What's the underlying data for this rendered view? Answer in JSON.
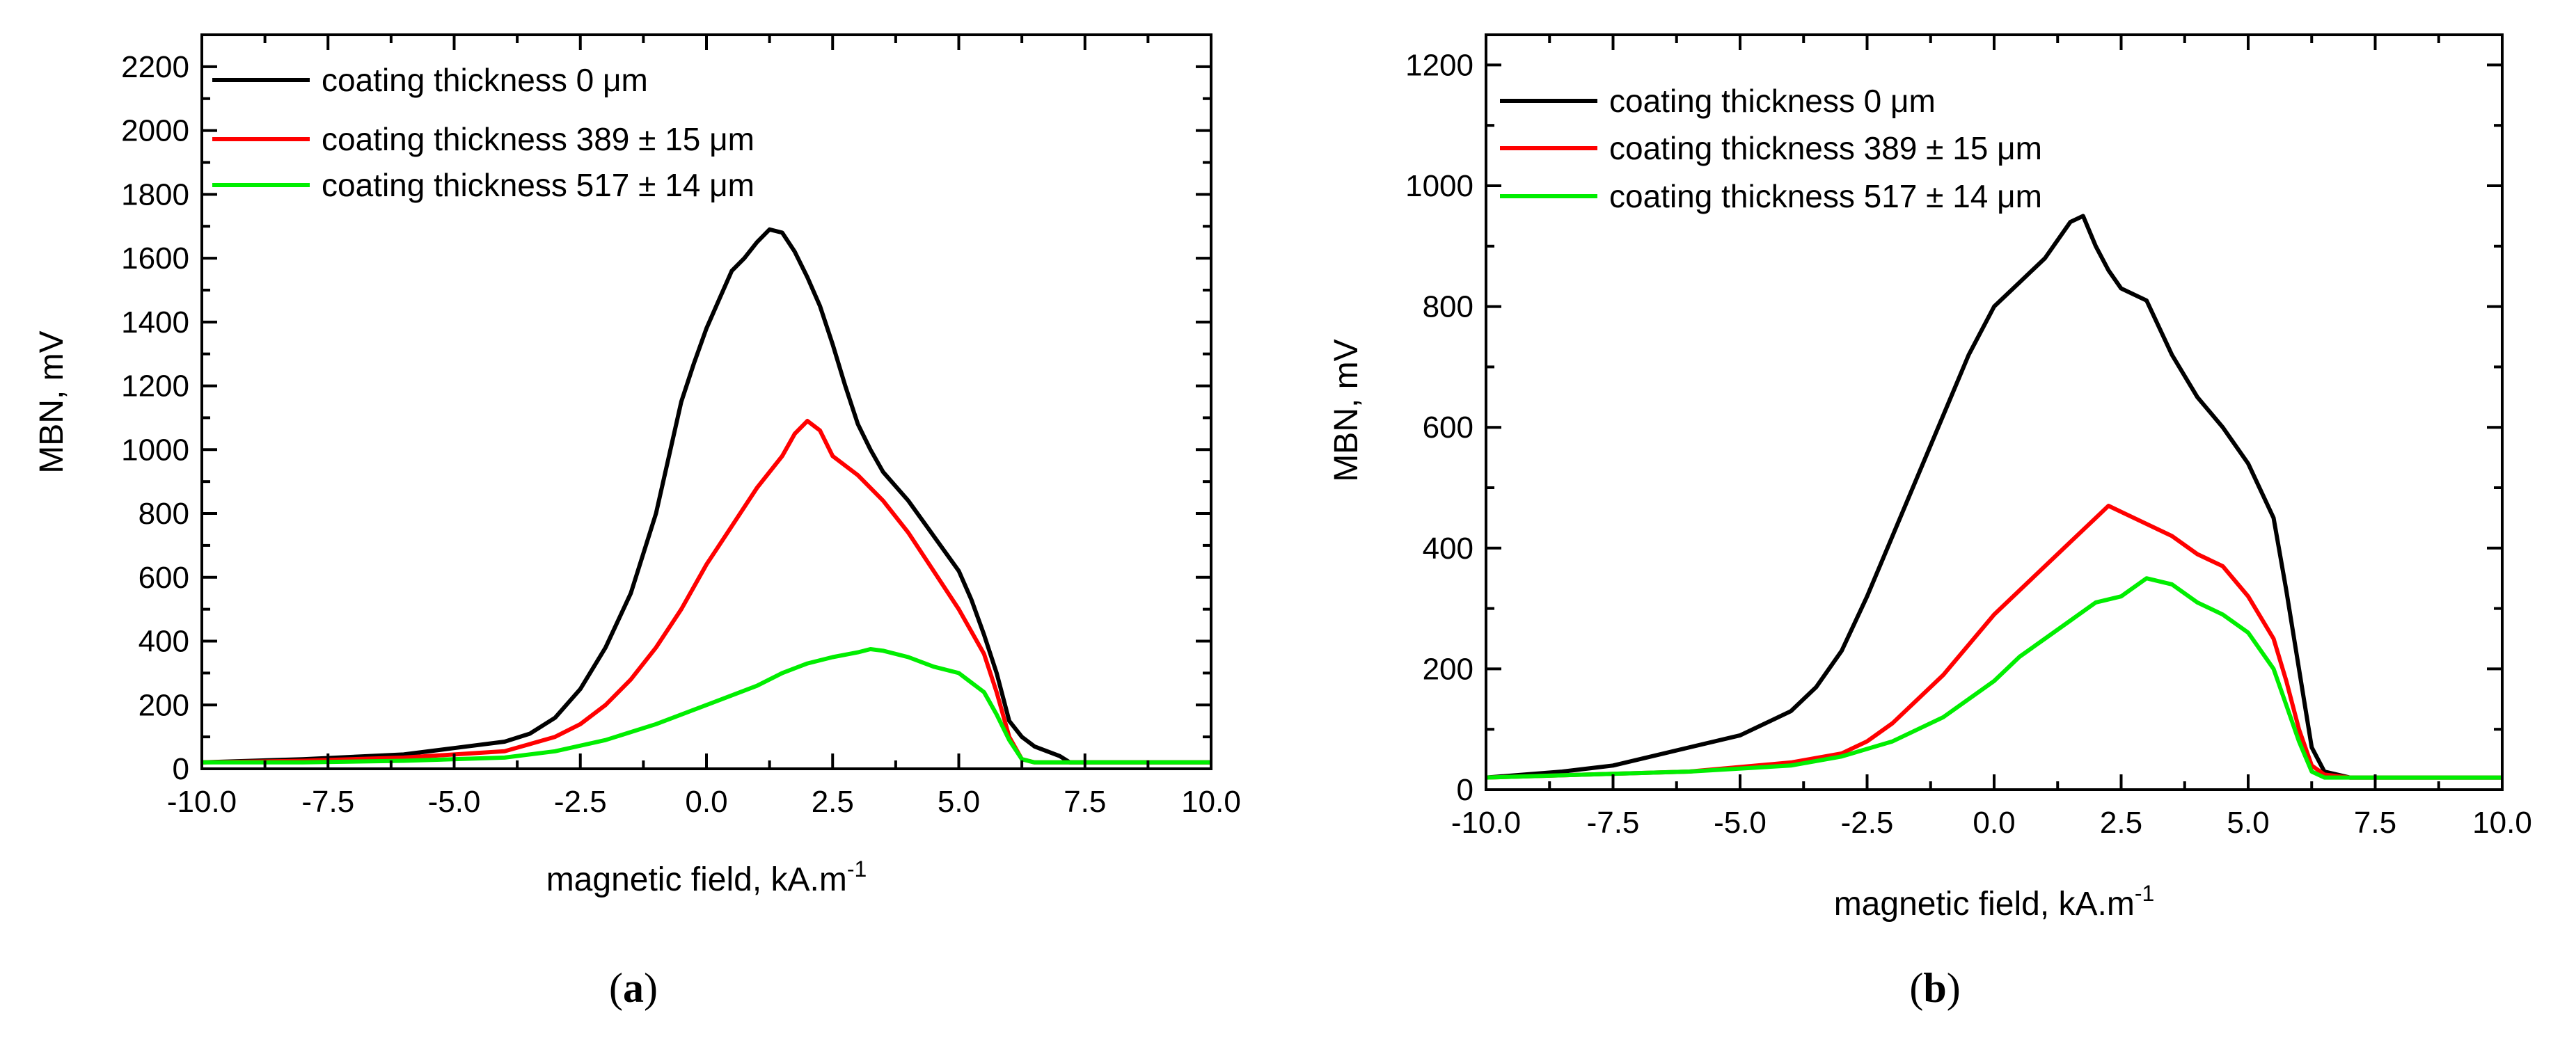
{
  "chart_data": [
    {
      "type": "line",
      "caption_pre": "(",
      "caption_letter": "a",
      "caption_post": ")",
      "xlabel": "magnetic field, kA.m",
      "xlabel_sup": "-1",
      "ylabel": "MBN, mV",
      "xlim": [
        -10,
        10
      ],
      "ylim": [
        0,
        2300
      ],
      "xticks": [
        -10,
        -7.5,
        -5,
        -2.5,
        0,
        2.5,
        5,
        7.5,
        10
      ],
      "xtick_labels": [
        "-10.0",
        "-7.5",
        "-5.0",
        "-2.5",
        "0.0",
        "2.5",
        "5.0",
        "7.5",
        "10.0"
      ],
      "yticks": [
        0,
        200,
        400,
        600,
        800,
        1000,
        1200,
        1400,
        1600,
        1800,
        2000,
        2200
      ],
      "ytick_labels": [
        "0",
        "200",
        "400",
        "600",
        "800",
        "1000",
        "1200",
        "1400",
        "1600",
        "1800",
        "2000",
        "2200"
      ],
      "legend_position": "top-left",
      "series": [
        {
          "name": "coating thickness 0 μm",
          "color": "#000000",
          "x": [
            -10,
            -8,
            -6,
            -5,
            -4,
            -3.5,
            -3,
            -2.5,
            -2,
            -1.5,
            -1,
            -0.5,
            -0.25,
            0,
            0.25,
            0.5,
            0.75,
            1,
            1.25,
            1.5,
            1.75,
            2,
            2.25,
            2.5,
            2.75,
            3,
            3.25,
            3.5,
            4,
            4.5,
            5,
            5.25,
            5.5,
            5.75,
            6,
            6.25,
            6.5,
            7,
            7.2,
            8,
            10
          ],
          "y": [
            20,
            30,
            45,
            65,
            85,
            110,
            160,
            250,
            380,
            550,
            800,
            1150,
            1270,
            1380,
            1470,
            1560,
            1600,
            1650,
            1690,
            1680,
            1620,
            1540,
            1450,
            1330,
            1200,
            1080,
            1000,
            930,
            840,
            730,
            620,
            530,
            420,
            300,
            150,
            100,
            70,
            40,
            20,
            20,
            20
          ]
        },
        {
          "name": "coating thickness 389 ± 15 μm",
          "color": "#ff0000",
          "x": [
            -10,
            -8,
            -6,
            -4,
            -3,
            -2.5,
            -2,
            -1.5,
            -1,
            -0.5,
            0,
            0.5,
            1,
            1.5,
            1.75,
            2,
            2.25,
            2.5,
            3,
            3.5,
            4,
            4.5,
            5,
            5.5,
            5.75,
            6,
            6.25,
            6.5,
            7,
            8,
            10
          ],
          "y": [
            20,
            25,
            35,
            55,
            100,
            140,
            200,
            280,
            380,
            500,
            640,
            760,
            880,
            980,
            1050,
            1090,
            1060,
            980,
            920,
            840,
            740,
            620,
            500,
            360,
            240,
            100,
            30,
            20,
            20,
            20,
            20
          ]
        },
        {
          "name": "coating thickness 517 ± 14 μm",
          "color": "#00ee00",
          "x": [
            -10,
            -8,
            -6,
            -4,
            -3,
            -2,
            -1,
            0,
            1,
            1.5,
            2,
            2.5,
            3,
            3.25,
            3.5,
            4,
            4.5,
            5,
            5.5,
            5.75,
            6,
            6.25,
            6.5,
            7,
            10
          ],
          "y": [
            20,
            20,
            25,
            35,
            55,
            90,
            140,
            200,
            260,
            300,
            330,
            350,
            365,
            375,
            370,
            350,
            320,
            300,
            240,
            170,
            90,
            30,
            20,
            20,
            20
          ]
        }
      ]
    },
    {
      "type": "line",
      "caption_pre": "(",
      "caption_letter": "b",
      "caption_post": ")",
      "xlabel": "magnetic field, kA.m",
      "xlabel_sup": "-1",
      "ylabel": "MBN, mV",
      "xlim": [
        -10,
        10
      ],
      "ylim": [
        0,
        1250
      ],
      "xticks": [
        -10,
        -7.5,
        -5,
        -2.5,
        0,
        2.5,
        5,
        7.5,
        10
      ],
      "xtick_labels": [
        "-10.0",
        "-7.5",
        "-5.0",
        "-2.5",
        "0.0",
        "2.5",
        "5.0",
        "7.5",
        "10.0"
      ],
      "yticks": [
        0,
        200,
        400,
        600,
        800,
        1000,
        1200
      ],
      "ytick_labels": [
        "0",
        "200",
        "400",
        "600",
        "800",
        "1000",
        "1200"
      ],
      "legend_position": "top-left",
      "series": [
        {
          "name": "coating thickness 0 μm",
          "color": "#000000",
          "x": [
            -10,
            -8.5,
            -7.5,
            -6.5,
            -5,
            -4,
            -3.5,
            -3,
            -2.5,
            -2,
            -1.5,
            -1,
            -0.5,
            0,
            0.5,
            1,
            1.5,
            1.75,
            2,
            2.25,
            2.5,
            3,
            3.5,
            4,
            4.5,
            5,
            5.5,
            5.75,
            6,
            6.25,
            6.5,
            7,
            10
          ],
          "y": [
            20,
            30,
            40,
            60,
            90,
            130,
            170,
            230,
            320,
            420,
            520,
            620,
            720,
            800,
            840,
            880,
            940,
            950,
            900,
            860,
            830,
            810,
            720,
            650,
            600,
            540,
            450,
            330,
            200,
            70,
            30,
            20,
            20
          ]
        },
        {
          "name": "coating thickness 389 ±  15 μm",
          "color": "#ff0000",
          "x": [
            -10,
            -8,
            -6,
            -4,
            -3,
            -2.5,
            -2,
            -1.5,
            -1,
            -0.5,
            0,
            0.5,
            1,
            1.5,
            2,
            2.25,
            2.5,
            3,
            3.5,
            4,
            4.5,
            5,
            5.5,
            5.75,
            6,
            6.25,
            6.5,
            7,
            10
          ],
          "y": [
            20,
            25,
            30,
            45,
            60,
            80,
            110,
            150,
            190,
            240,
            290,
            330,
            370,
            410,
            450,
            470,
            460,
            440,
            420,
            390,
            370,
            320,
            250,
            180,
            100,
            40,
            25,
            20,
            20
          ]
        },
        {
          "name": "coating thickness 517 ± 14 μm",
          "color": "#00ee00",
          "x": [
            -10,
            -8,
            -6,
            -4,
            -3,
            -2,
            -1.5,
            -1,
            -0.5,
            0,
            0.5,
            1,
            1.5,
            2,
            2.5,
            3,
            3.5,
            4,
            4.5,
            5,
            5.5,
            5.75,
            6,
            6.25,
            6.5,
            7,
            10
          ],
          "y": [
            20,
            25,
            30,
            40,
            55,
            80,
            100,
            120,
            150,
            180,
            220,
            250,
            280,
            310,
            320,
            350,
            340,
            310,
            290,
            260,
            200,
            140,
            80,
            30,
            20,
            20,
            20
          ]
        }
      ]
    }
  ]
}
